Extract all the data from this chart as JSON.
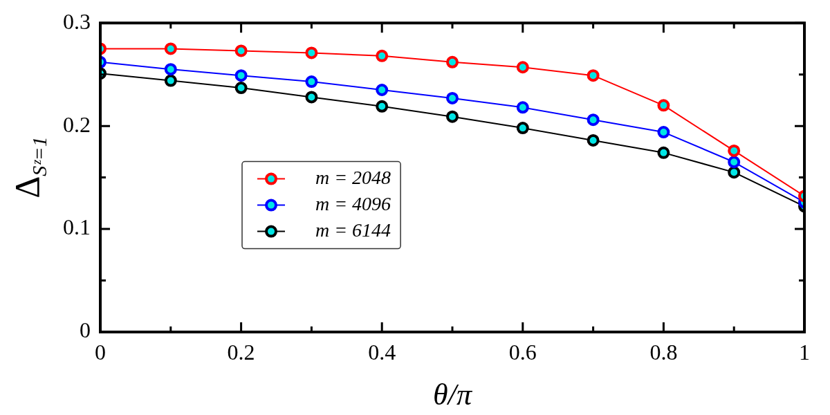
{
  "chart_data": {
    "type": "line",
    "xlabel": "θ/π",
    "ylabel": "Δ$_{Sᶻ=1}$",
    "x": [
      0,
      0.1,
      0.2,
      0.3,
      0.4,
      0.5,
      0.6,
      0.7,
      0.8,
      0.9,
      1
    ],
    "series": [
      {
        "name": "m = 2048",
        "color": "#ff0000",
        "values": [
          0.275,
          0.275,
          0.273,
          0.271,
          0.268,
          0.262,
          0.257,
          0.249,
          0.22,
          0.176,
          0.132
        ]
      },
      {
        "name": "m = 4096",
        "color": "#0000ff",
        "values": [
          0.262,
          0.255,
          0.249,
          0.243,
          0.235,
          0.227,
          0.218,
          0.206,
          0.194,
          0.165,
          0.126
        ]
      },
      {
        "name": "m = 6144",
        "color": "#000000",
        "values": [
          0.251,
          0.244,
          0.237,
          0.228,
          0.219,
          0.209,
          0.198,
          0.186,
          0.174,
          0.155,
          0.122
        ]
      }
    ],
    "xlim": [
      0,
      1
    ],
    "xticks": [
      0,
      {
        "value": 0.1,
        "label": null
      },
      0.2,
      {
        "value": 0.3,
        "label": null
      },
      0.4,
      {
        "value": 0.5,
        "label": null
      },
      0.6,
      {
        "value": 0.7,
        "label": null
      },
      0.8,
      {
        "value": 0.9,
        "label": null
      },
      1
    ],
    "ylim": [
      0,
      0.3
    ],
    "yticks": [
      0,
      {
        "value": 0.05,
        "label": null
      },
      0.1,
      {
        "value": 0.15,
        "label": null
      },
      0.2,
      {
        "value": 0.25,
        "label": null
      },
      0.3
    ],
    "grid": false,
    "legend": "center left",
    "marker": "circle",
    "line_style": "solid"
  }
}
